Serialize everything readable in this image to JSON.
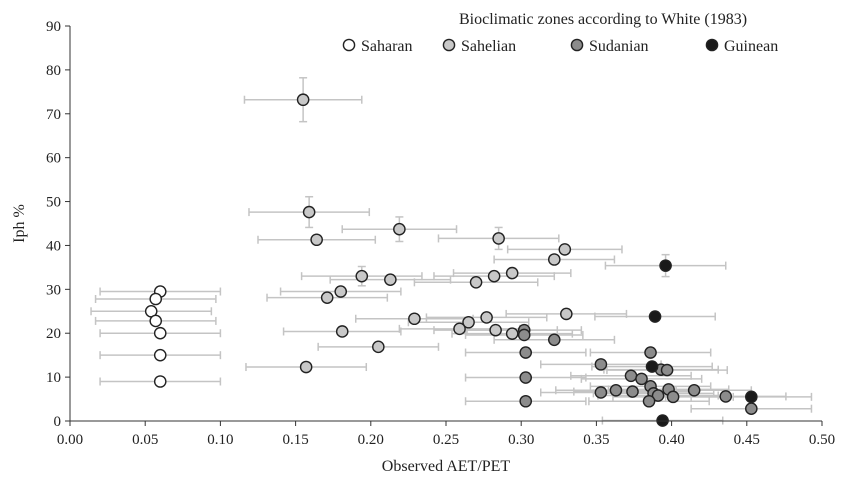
{
  "chart_data": {
    "type": "scatter",
    "title": "",
    "xlabel": "Observed AET/PET",
    "ylabel": "Iph %",
    "xlim": [
      0,
      0.5
    ],
    "ylim": [
      0,
      90
    ],
    "xticks": [
      "0.00",
      "0.05",
      "0.10",
      "0.15",
      "0.20",
      "0.25",
      "0.30",
      "0.35",
      "0.40",
      "0.45",
      "0.50"
    ],
    "yticks": [
      "0",
      "10",
      "20",
      "30",
      "40",
      "50",
      "60",
      "70",
      "80",
      "90"
    ],
    "grid": false,
    "legend": {
      "title": "Bioclimatic zones according to White (1983)",
      "placement": "top-right"
    },
    "series": [
      {
        "name": "Saharan",
        "color": "#ffffff",
        "points": [
          {
            "x": 0.06,
            "y": 29.5,
            "xerr": 0.04
          },
          {
            "x": 0.057,
            "y": 27.8,
            "xerr": 0.04
          },
          {
            "x": 0.054,
            "y": 25.0,
            "xerr": 0.04
          },
          {
            "x": 0.057,
            "y": 22.8,
            "xerr": 0.04
          },
          {
            "x": 0.06,
            "y": 20.0,
            "xerr": 0.04
          },
          {
            "x": 0.06,
            "y": 15.0,
            "xerr": 0.04
          },
          {
            "x": 0.06,
            "y": 9.0,
            "xerr": 0.04
          }
        ]
      },
      {
        "name": "Sahelian",
        "color": "#c8c8c8",
        "points": [
          {
            "x": 0.155,
            "y": 73.2,
            "xerr": 0.039,
            "yerr": 5.0
          },
          {
            "x": 0.159,
            "y": 47.6,
            "xerr": 0.04,
            "yerr": 3.5
          },
          {
            "x": 0.219,
            "y": 43.7,
            "xerr": 0.038,
            "yerr": 2.8
          },
          {
            "x": 0.164,
            "y": 41.3,
            "xerr": 0.039
          },
          {
            "x": 0.285,
            "y": 41.6,
            "xerr": 0.04,
            "yerr": 2.5
          },
          {
            "x": 0.329,
            "y": 39.1,
            "xerr": 0.038
          },
          {
            "x": 0.322,
            "y": 36.8,
            "xerr": 0.04
          },
          {
            "x": 0.194,
            "y": 33.0,
            "xerr": 0.04,
            "yerr": 2.2
          },
          {
            "x": 0.213,
            "y": 32.2,
            "xerr": 0.04
          },
          {
            "x": 0.282,
            "y": 33.0,
            "xerr": 0.04
          },
          {
            "x": 0.294,
            "y": 33.7,
            "xerr": 0.039
          },
          {
            "x": 0.27,
            "y": 31.6,
            "xerr": 0.041
          },
          {
            "x": 0.18,
            "y": 29.5,
            "xerr": 0.04
          },
          {
            "x": 0.171,
            "y": 28.1,
            "xerr": 0.04
          },
          {
            "x": 0.229,
            "y": 23.3,
            "xerr": 0.039
          },
          {
            "x": 0.265,
            "y": 22.5,
            "xerr": 0.04
          },
          {
            "x": 0.277,
            "y": 23.6,
            "xerr": 0.04
          },
          {
            "x": 0.33,
            "y": 24.4,
            "xerr": 0.04
          },
          {
            "x": 0.181,
            "y": 20.4,
            "xerr": 0.039
          },
          {
            "x": 0.259,
            "y": 21.0,
            "xerr": 0.04
          },
          {
            "x": 0.283,
            "y": 20.7,
            "xerr": 0.041
          },
          {
            "x": 0.294,
            "y": 19.9,
            "xerr": 0.04
          },
          {
            "x": 0.205,
            "y": 16.9,
            "xerr": 0.04
          },
          {
            "x": 0.157,
            "y": 12.3,
            "xerr": 0.04
          }
        ]
      },
      {
        "name": "Sudanian",
        "color": "#8c8c8c",
        "points": [
          {
            "x": 0.302,
            "y": 20.7,
            "xerr": 0.038
          },
          {
            "x": 0.302,
            "y": 19.6,
            "xerr": 0.039
          },
          {
            "x": 0.322,
            "y": 18.5,
            "xerr": 0.04
          },
          {
            "x": 0.303,
            "y": 15.6,
            "xerr": 0.04
          },
          {
            "x": 0.386,
            "y": 15.6,
            "xerr": 0.04
          },
          {
            "x": 0.353,
            "y": 12.9,
            "xerr": 0.04
          },
          {
            "x": 0.393,
            "y": 11.7,
            "xerr": 0.038
          },
          {
            "x": 0.397,
            "y": 11.6,
            "xerr": 0.04
          },
          {
            "x": 0.373,
            "y": 10.3,
            "xerr": 0.04
          },
          {
            "x": 0.38,
            "y": 9.6,
            "xerr": 0.04
          },
          {
            "x": 0.303,
            "y": 9.9,
            "xerr": 0.04
          },
          {
            "x": 0.386,
            "y": 7.9,
            "xerr": 0.04
          },
          {
            "x": 0.363,
            "y": 7.0,
            "xerr": 0.04
          },
          {
            "x": 0.374,
            "y": 6.7,
            "xerr": 0.039
          },
          {
            "x": 0.398,
            "y": 7.2,
            "xerr": 0.04
          },
          {
            "x": 0.415,
            "y": 7.0,
            "xerr": 0.038
          },
          {
            "x": 0.353,
            "y": 6.5,
            "xerr": 0.04
          },
          {
            "x": 0.388,
            "y": 6.3,
            "xerr": 0.04
          },
          {
            "x": 0.391,
            "y": 5.8,
            "xerr": 0.04
          },
          {
            "x": 0.401,
            "y": 5.5,
            "xerr": 0.04
          },
          {
            "x": 0.436,
            "y": 5.6,
            "xerr": 0.04
          },
          {
            "x": 0.385,
            "y": 4.5,
            "xerr": 0.04
          },
          {
            "x": 0.303,
            "y": 4.5,
            "xerr": 0.04
          },
          {
            "x": 0.453,
            "y": 2.8,
            "xerr": 0.04
          }
        ]
      },
      {
        "name": "Guinean",
        "color": "#1a1a1a",
        "points": [
          {
            "x": 0.396,
            "y": 35.4,
            "xerr": 0.04,
            "yerr": 2.5
          },
          {
            "x": 0.389,
            "y": 23.8,
            "xerr": 0.04
          },
          {
            "x": 0.387,
            "y": 12.4,
            "xerr": 0.04
          },
          {
            "x": 0.453,
            "y": 5.5,
            "xerr": 0.04
          },
          {
            "x": 0.394,
            "y": 0.1,
            "xerr": 0.04
          }
        ]
      }
    ]
  }
}
